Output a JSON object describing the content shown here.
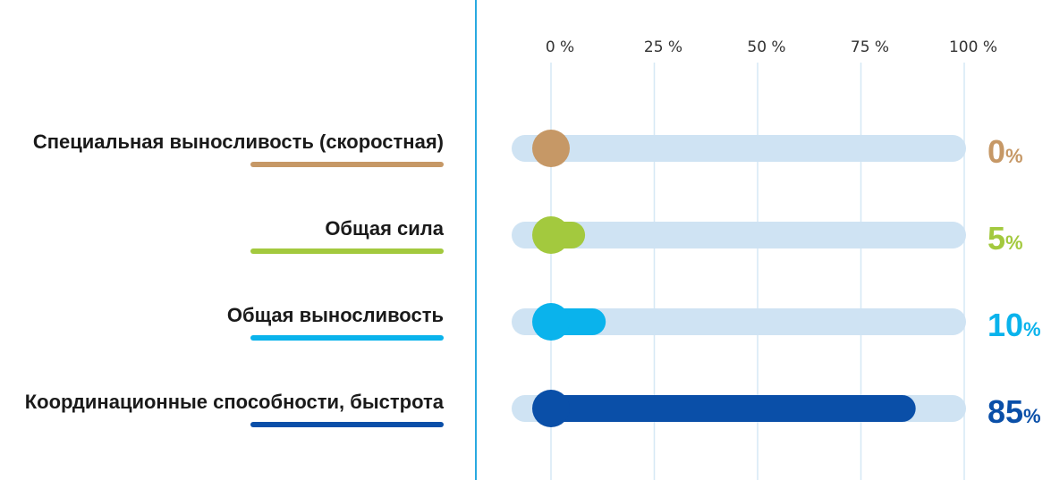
{
  "chart_data": {
    "type": "bar",
    "orientation": "horizontal",
    "xlim": [
      0,
      100
    ],
    "x_ticks": [
      "0 %",
      "25 %",
      "50 %",
      "75 %",
      "100 %"
    ],
    "grid": true,
    "track_color": "#cfe3f3",
    "grid_color": "#d6e8f5",
    "divider_color": "#29a9e0",
    "categories": [
      {
        "label": "Специальная выносливость (скоростная)",
        "value": 0,
        "value_text": "0",
        "unit": "%",
        "color": "#c69866"
      },
      {
        "label": "Общая сила",
        "value": 5,
        "value_text": "5",
        "unit": "%",
        "color": "#a3c93e"
      },
      {
        "label": "Общая выносливость",
        "value": 10,
        "value_text": "10",
        "unit": "%",
        "color": "#0ab3ec"
      },
      {
        "label": "Координационные способности, быстрота",
        "value": 85,
        "value_text": "85",
        "unit": "%",
        "color": "#0a4fa8"
      }
    ]
  }
}
